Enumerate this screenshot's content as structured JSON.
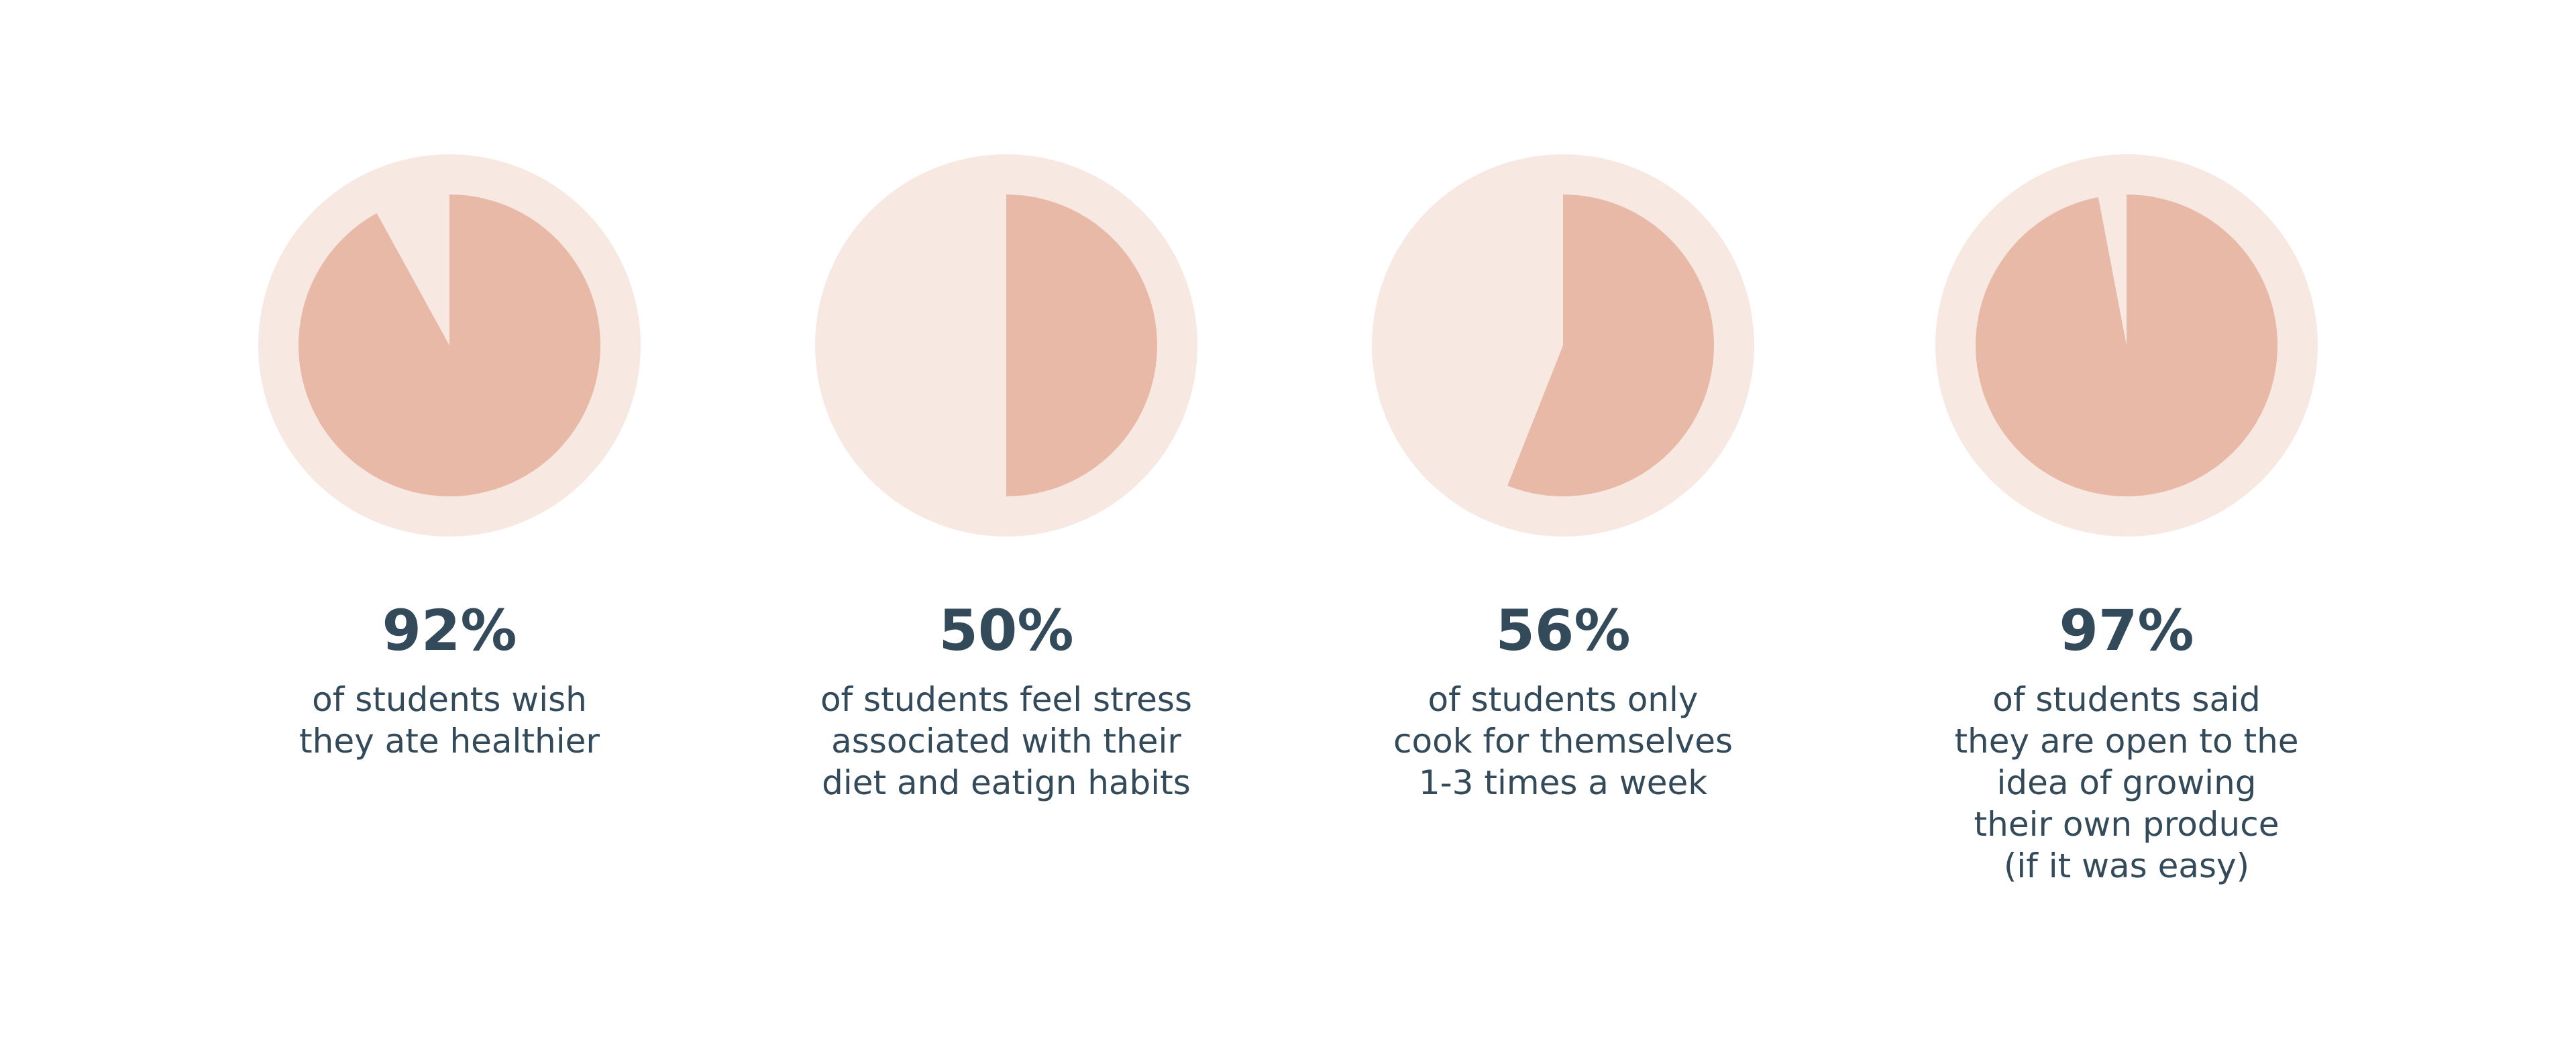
{
  "chart_data": [
    {
      "type": "pie",
      "value": 92,
      "label": "92%",
      "caption": [
        "of students wish",
        "they ate healthier"
      ]
    },
    {
      "type": "pie",
      "value": 50,
      "label": "50%",
      "caption": [
        "of students feel stress",
        "associated with their",
        "diet and eatign habits"
      ]
    },
    {
      "type": "pie",
      "value": 56,
      "label": "56%",
      "caption": [
        "of students only",
        "cook for themselves",
        "1-3 times a week"
      ]
    },
    {
      "type": "pie",
      "value": 97,
      "label": "97%",
      "caption": [
        "of students said",
        "they are open to the",
        "idea of growing",
        "their own produce",
        "(if it was easy)"
      ]
    }
  ],
  "colors": {
    "ring": "#f7e8e2",
    "slice": "#e8b9a6",
    "text": "#334a5a"
  }
}
